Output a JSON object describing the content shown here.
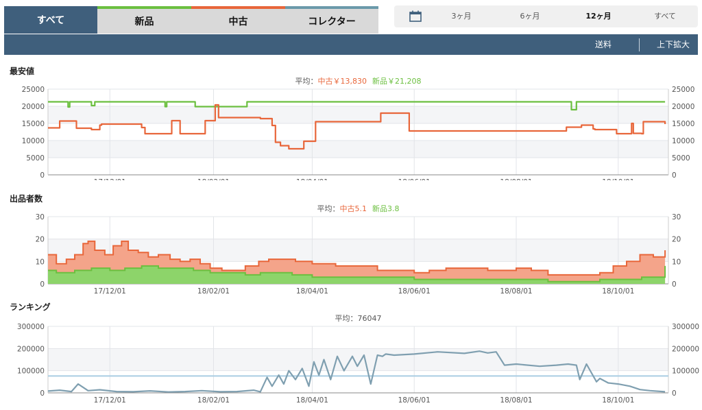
{
  "tabs": {
    "all": "すべて",
    "items": [
      {
        "label": "新品",
        "color": "#6bbf3f"
      },
      {
        "label": "中古",
        "color": "#e8663a"
      },
      {
        "label": "コレクター",
        "color": "#6a9aaa"
      }
    ]
  },
  "range": {
    "options": [
      "3ヶ月",
      "6ヶ月",
      "12ヶ月",
      "すべて"
    ],
    "selected": "12ヶ月"
  },
  "toolbar": {
    "shipping_label": "送料",
    "zoom_label": "上下拡大"
  },
  "colors": {
    "new": "#6bbf3f",
    "used": "#e8663a",
    "ranking": "#7f9fb0",
    "ranking_avg": "#a9cde3",
    "header": "#3f5f7c"
  },
  "chart_data": [
    {
      "id": "price",
      "type": "line",
      "title": "最安値",
      "average_label": "平均：",
      "averages": [
        {
          "name": "中古",
          "text": "中古￥13,830",
          "color": "#e8663a"
        },
        {
          "name": "新品",
          "text": "新品￥21,208",
          "color": "#6bbf3f"
        }
      ],
      "ylim": [
        0,
        25000
      ],
      "yticks": [
        "0",
        "5000",
        "10000",
        "15000",
        "20000",
        "25000"
      ],
      "xlim": [
        "2017-10-25",
        "2018-10-31"
      ],
      "xticks": [
        {
          "date": "2017-12-01",
          "label": "17/12/01"
        },
        {
          "date": "2018-02-01",
          "label": "18/02/01"
        },
        {
          "date": "2018-04-01",
          "label": "18/04/01"
        },
        {
          "date": "2018-06-01",
          "label": "18/06/01"
        },
        {
          "date": "2018-08-01",
          "label": "18/08/01"
        },
        {
          "date": "2018-10-01",
          "label": "18/10/01"
        }
      ],
      "series": [
        {
          "name": "新品",
          "color": "#6bbf3f",
          "x": [
            "2017-10-25",
            "2017-11-05",
            "2017-11-06",
            "2017-11-07",
            "2017-11-15",
            "2017-11-20",
            "2017-11-21",
            "2017-11-22",
            "2018-01-02",
            "2018-01-03",
            "2018-01-04",
            "2018-01-20",
            "2018-01-21",
            "2018-02-20",
            "2018-02-21",
            "2018-09-02",
            "2018-09-03",
            "2018-09-06",
            "2018-10-29"
          ],
          "y": [
            21300,
            21300,
            19800,
            21300,
            21300,
            20200,
            20200,
            21300,
            21300,
            19900,
            21300,
            21300,
            19900,
            19900,
            21300,
            21300,
            19000,
            21300,
            21300
          ]
        },
        {
          "name": "中古",
          "color": "#e8663a",
          "x": [
            "2017-10-25",
            "2017-10-28",
            "2017-11-01",
            "2017-11-02",
            "2017-11-10",
            "2017-11-11",
            "2017-11-20",
            "2017-11-25",
            "2017-11-26",
            "2017-12-05",
            "2017-12-20",
            "2017-12-22",
            "2017-12-23",
            "2018-01-06",
            "2018-01-07",
            "2018-01-11",
            "2018-01-12",
            "2018-01-26",
            "2018-01-27",
            "2018-02-01",
            "2018-02-02",
            "2018-02-04",
            "2018-03-01",
            "2018-03-08",
            "2018-03-10",
            "2018-03-13",
            "2018-03-18",
            "2018-03-26",
            "2018-03-27",
            "2018-04-02",
            "2018-04-03",
            "2018-05-11",
            "2018-05-12",
            "2018-05-28",
            "2018-05-29",
            "2018-08-30",
            "2018-08-31",
            "2018-09-08",
            "2018-09-09",
            "2018-09-16",
            "2018-09-17",
            "2018-09-30",
            "2018-10-06",
            "2018-10-07",
            "2018-10-09",
            "2018-10-10",
            "2018-10-15",
            "2018-10-16",
            "2018-10-29"
          ],
          "y": [
            13700,
            13700,
            15700,
            15700,
            15700,
            13600,
            13200,
            14500,
            14800,
            14800,
            13800,
            12000,
            12000,
            12000,
            15800,
            15800,
            12000,
            12000,
            15800,
            15800,
            20400,
            16700,
            16400,
            14400,
            9500,
            8500,
            7600,
            7600,
            9800,
            9800,
            15500,
            15500,
            18000,
            18000,
            12800,
            12800,
            13900,
            13900,
            14500,
            13400,
            13200,
            12000,
            12000,
            12000,
            15000,
            12100,
            12000,
            15500,
            14800
          ]
        }
      ]
    },
    {
      "id": "sellers",
      "type": "area",
      "title": "出品者数",
      "average_label": "平均：",
      "averages": [
        {
          "name": "中古",
          "text": "中古5.1",
          "color": "#e8663a"
        },
        {
          "name": "新品",
          "text": "新品3.8",
          "color": "#6bbf3f"
        }
      ],
      "ylim": [
        0,
        30
      ],
      "yticks": [
        "0",
        "10",
        "20",
        "30"
      ],
      "xlim": [
        "2017-10-25",
        "2018-10-31"
      ],
      "xticks": [
        {
          "date": "2017-12-01",
          "label": "17/12/01"
        },
        {
          "date": "2018-02-01",
          "label": "18/02/01"
        },
        {
          "date": "2018-04-01",
          "label": "18/04/01"
        },
        {
          "date": "2018-06-01",
          "label": "18/06/01"
        },
        {
          "date": "2018-08-01",
          "label": "18/08/01"
        },
        {
          "date": "2018-10-01",
          "label": "18/10/01"
        }
      ],
      "series": [
        {
          "name": "中古",
          "color": "#e8663a",
          "fill": "#f4a48a",
          "x": [
            "2017-10-25",
            "2017-10-30",
            "2017-11-05",
            "2017-11-10",
            "2017-11-15",
            "2017-11-18",
            "2017-11-22",
            "2017-11-28",
            "2017-12-03",
            "2017-12-08",
            "2017-12-12",
            "2017-12-18",
            "2017-12-24",
            "2017-12-30",
            "2018-01-06",
            "2018-01-12",
            "2018-01-18",
            "2018-01-24",
            "2018-01-30",
            "2018-02-06",
            "2018-02-12",
            "2018-02-20",
            "2018-02-28",
            "2018-03-06",
            "2018-03-14",
            "2018-03-22",
            "2018-04-01",
            "2018-04-15",
            "2018-05-01",
            "2018-05-10",
            "2018-05-20",
            "2018-06-01",
            "2018-06-10",
            "2018-06-20",
            "2018-07-01",
            "2018-07-15",
            "2018-08-01",
            "2018-08-10",
            "2018-08-20",
            "2018-09-01",
            "2018-09-10",
            "2018-09-20",
            "2018-09-28",
            "2018-10-06",
            "2018-10-14",
            "2018-10-22",
            "2018-10-29"
          ],
          "y": [
            13,
            9,
            11,
            13,
            18,
            19,
            15,
            13,
            17,
            19,
            15,
            14,
            12,
            13,
            11,
            10,
            11,
            9,
            7,
            6,
            6,
            8,
            10,
            11,
            11,
            10,
            9,
            8,
            8,
            6,
            6,
            5,
            6,
            7,
            7,
            6,
            7,
            6,
            4,
            4,
            4,
            5,
            8,
            10,
            13,
            12,
            15
          ]
        },
        {
          "name": "新品",
          "color": "#6bbf3f",
          "fill": "#8dd46a",
          "x": [
            "2017-10-25",
            "2017-10-30",
            "2017-11-10",
            "2017-11-20",
            "2017-12-01",
            "2017-12-10",
            "2017-12-20",
            "2017-12-30",
            "2018-01-10",
            "2018-01-20",
            "2018-01-30",
            "2018-02-10",
            "2018-02-20",
            "2018-03-01",
            "2018-03-10",
            "2018-03-20",
            "2018-04-01",
            "2018-05-01",
            "2018-05-20",
            "2018-06-01",
            "2018-07-01",
            "2018-08-01",
            "2018-08-20",
            "2018-09-01",
            "2018-09-20",
            "2018-10-01",
            "2018-10-15",
            "2018-10-29"
          ],
          "y": [
            6,
            5,
            6,
            7,
            6,
            7,
            8,
            7,
            7,
            6,
            5,
            5,
            4,
            5,
            5,
            4,
            3,
            3,
            3,
            2,
            2,
            2,
            1,
            1,
            2,
            2,
            3,
            8
          ]
        }
      ]
    },
    {
      "id": "ranking",
      "type": "line",
      "title": "ランキング",
      "average_label": "平均：",
      "average_value": "76047",
      "ylim": [
        0,
        300000
      ],
      "yticks": [
        "0",
        "100000",
        "200000",
        "300000"
      ],
      "xlim": [
        "2017-10-25",
        "2018-10-31"
      ],
      "xticks": [
        {
          "date": "2017-12-01",
          "label": "17/12/01"
        },
        {
          "date": "2018-02-01",
          "label": "18/02/01"
        },
        {
          "date": "2018-04-01",
          "label": "18/04/01"
        },
        {
          "date": "2018-06-01",
          "label": "18/06/01"
        },
        {
          "date": "2018-08-01",
          "label": "18/08/01"
        },
        {
          "date": "2018-10-01",
          "label": "18/10/01"
        }
      ],
      "average_line": 76047,
      "series": [
        {
          "name": "ランキング",
          "color": "#7f9fb0",
          "x": [
            "2017-10-25",
            "2017-11-01",
            "2017-11-08",
            "2017-11-12",
            "2017-11-18",
            "2017-11-25",
            "2017-12-05",
            "2017-12-15",
            "2017-12-25",
            "2018-01-05",
            "2018-01-15",
            "2018-01-25",
            "2018-02-05",
            "2018-02-15",
            "2018-02-25",
            "2018-03-01",
            "2018-03-05",
            "2018-03-08",
            "2018-03-12",
            "2018-03-15",
            "2018-03-18",
            "2018-03-22",
            "2018-03-26",
            "2018-03-30",
            "2018-04-02",
            "2018-04-05",
            "2018-04-08",
            "2018-04-12",
            "2018-04-16",
            "2018-04-20",
            "2018-04-25",
            "2018-04-28",
            "2018-05-02",
            "2018-05-06",
            "2018-05-10",
            "2018-05-13",
            "2018-05-15",
            "2018-05-20",
            "2018-06-01",
            "2018-06-15",
            "2018-07-01",
            "2018-07-10",
            "2018-07-15",
            "2018-07-20",
            "2018-07-25",
            "2018-08-01",
            "2018-08-15",
            "2018-08-25",
            "2018-09-01",
            "2018-09-06",
            "2018-09-08",
            "2018-09-12",
            "2018-09-18",
            "2018-09-20",
            "2018-09-25",
            "2018-10-01",
            "2018-10-08",
            "2018-10-14",
            "2018-10-20",
            "2018-10-29"
          ],
          "y": [
            8000,
            12000,
            6000,
            40000,
            10000,
            14000,
            6000,
            5000,
            9000,
            4000,
            6000,
            10000,
            5000,
            6000,
            12000,
            5000,
            70000,
            30000,
            80000,
            40000,
            100000,
            60000,
            110000,
            30000,
            140000,
            80000,
            150000,
            60000,
            165000,
            100000,
            165000,
            120000,
            170000,
            40000,
            170000,
            165000,
            175000,
            170000,
            175000,
            185000,
            178000,
            188000,
            180000,
            185000,
            125000,
            130000,
            120000,
            125000,
            130000,
            125000,
            60000,
            130000,
            50000,
            65000,
            45000,
            40000,
            30000,
            15000,
            10000,
            5000
          ]
        }
      ]
    }
  ]
}
